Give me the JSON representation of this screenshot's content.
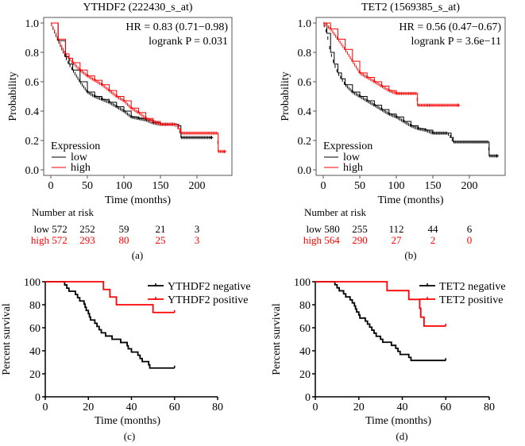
{
  "colors": {
    "low": "#000000",
    "high": "#ff0000",
    "frame": "#555555"
  },
  "chart_data": [
    {
      "id": "a",
      "type": "line",
      "subtype": "kaplan-meier",
      "title": "YTHDF2 (222430_s_at)",
      "xlabel": "Time (months)",
      "ylabel": "Probability",
      "xlim": [
        0,
        240
      ],
      "ylim": [
        0,
        1
      ],
      "xticks": [
        0,
        50,
        100,
        150,
        200
      ],
      "yticks": [
        "0.0",
        "0.2",
        "0.4",
        "0.6",
        "0.8",
        "1.0"
      ],
      "annotation": [
        "HR = 0.83 (0.71−0.98)",
        "logrank P = 0.031"
      ],
      "legend_title": "Expression",
      "legend_position": "bottom-left",
      "series": [
        {
          "name": "low",
          "color": "#000000",
          "x": [
            0,
            10,
            20,
            25,
            30,
            40,
            50,
            60,
            70,
            80,
            90,
            100,
            110,
            120,
            130,
            140,
            150,
            160,
            170,
            175,
            178,
            200,
            220
          ],
          "y": [
            1.0,
            0.88,
            0.77,
            0.72,
            0.68,
            0.6,
            0.53,
            0.5,
            0.48,
            0.46,
            0.43,
            0.4,
            0.36,
            0.35,
            0.34,
            0.32,
            0.31,
            0.31,
            0.31,
            0.3,
            0.22,
            0.22,
            0.22
          ]
        },
        {
          "name": "high",
          "color": "#ff0000",
          "x": [
            0,
            10,
            20,
            25,
            30,
            40,
            50,
            60,
            70,
            80,
            90,
            100,
            110,
            120,
            130,
            140,
            150,
            160,
            170,
            175,
            178,
            200,
            228,
            229,
            238
          ],
          "y": [
            1.0,
            0.89,
            0.79,
            0.76,
            0.73,
            0.68,
            0.64,
            0.61,
            0.58,
            0.54,
            0.5,
            0.47,
            0.42,
            0.39,
            0.35,
            0.33,
            0.31,
            0.31,
            0.31,
            0.28,
            0.25,
            0.25,
            0.25,
            0.125,
            0.125
          ]
        }
      ],
      "risk_table": {
        "title": "Number at risk",
        "rows": [
          {
            "label": "low",
            "values": [
              "572",
              "252",
              "59",
              "21",
              "3"
            ]
          },
          {
            "label": "high",
            "values": [
              "572",
              "293",
              "80",
              "25",
              "3"
            ]
          }
        ]
      },
      "panel_label": "(a)"
    },
    {
      "id": "b",
      "type": "line",
      "subtype": "kaplan-meier",
      "title": "TET2 (1569385_s_at)",
      "xlabel": "Time (months)",
      "ylabel": "Probability",
      "xlim": [
        0,
        240
      ],
      "ylim": [
        0,
        1
      ],
      "xticks": [
        0,
        50,
        100,
        150,
        200
      ],
      "yticks": [
        "0.0",
        "0.2",
        "0.4",
        "0.6",
        "0.8",
        "1.0"
      ],
      "annotation": [
        "HR = 0.56 (0.47−0.67)",
        "logrank P = 3.6e−11"
      ],
      "legend_title": "Expression",
      "legend_position": "bottom-left",
      "series": [
        {
          "name": "low",
          "color": "#000000",
          "x": [
            0,
            5,
            10,
            15,
            20,
            25,
            30,
            40,
            50,
            60,
            70,
            80,
            90,
            100,
            110,
            120,
            130,
            140,
            150,
            160,
            170,
            175,
            178,
            200,
            226,
            227,
            238
          ],
          "y": [
            1.0,
            0.93,
            0.8,
            0.72,
            0.66,
            0.62,
            0.58,
            0.53,
            0.5,
            0.47,
            0.44,
            0.41,
            0.38,
            0.36,
            0.33,
            0.3,
            0.28,
            0.27,
            0.25,
            0.25,
            0.25,
            0.22,
            0.19,
            0.19,
            0.19,
            0.095,
            0.095
          ]
        },
        {
          "name": "high",
          "color": "#ff0000",
          "x": [
            0,
            10,
            20,
            30,
            40,
            50,
            60,
            70,
            80,
            90,
            100,
            110,
            120,
            128,
            129,
            140,
            150,
            165,
            185
          ],
          "y": [
            1.0,
            0.96,
            0.89,
            0.82,
            0.74,
            0.66,
            0.63,
            0.6,
            0.57,
            0.54,
            0.52,
            0.52,
            0.52,
            0.52,
            0.44,
            0.44,
            0.44,
            0.44,
            0.44
          ]
        }
      ],
      "risk_table": {
        "title": "Number at risk",
        "rows": [
          {
            "label": "low",
            "values": [
              "580",
              "255",
              "112",
              "44",
              "6"
            ]
          },
          {
            "label": "high",
            "values": [
              "564",
              "290",
              "27",
              "2",
              "0"
            ]
          }
        ]
      },
      "panel_label": "(b)"
    },
    {
      "id": "c",
      "type": "line",
      "subtype": "kaplan-meier-step",
      "title": "",
      "xlabel": "Time (months)",
      "ylabel": "Percent survival",
      "xlim": [
        0,
        80
      ],
      "ylim": [
        0,
        100
      ],
      "xticks": [
        0,
        20,
        40,
        60,
        80
      ],
      "yticks": [
        "0",
        "20",
        "40",
        "60",
        "80",
        "100"
      ],
      "legend_position": "top-right",
      "series": [
        {
          "name": "YTHDF2 negative",
          "color": "#000000",
          "steps": [
            [
              0,
              100
            ],
            [
              9,
              97.2
            ],
            [
              10,
              94.4
            ],
            [
              11,
              91.7
            ],
            [
              14,
              88.9
            ],
            [
              15,
              86.1
            ],
            [
              16,
              83.3
            ],
            [
              18,
              80.6
            ],
            [
              18.5,
              77.8
            ],
            [
              19,
              75
            ],
            [
              20,
              72.2
            ],
            [
              20.5,
              69.4
            ],
            [
              21,
              66.7
            ],
            [
              23,
              63.9
            ],
            [
              24,
              61.1
            ],
            [
              25,
              58.3
            ],
            [
              26,
              55.6
            ],
            [
              28,
              52.8
            ],
            [
              31,
              50
            ],
            [
              35,
              47.2
            ],
            [
              38,
              44.4
            ],
            [
              38.5,
              41.7
            ],
            [
              40,
              38.9
            ],
            [
              43,
              36.1
            ],
            [
              44,
              33.3
            ],
            [
              45,
              30.6
            ],
            [
              48,
              27.8
            ],
            [
              48.5,
              25
            ]
          ],
          "end": 60
        },
        {
          "name": "YTHDF2 positive",
          "color": "#ff0000",
          "steps": [
            [
              0,
              100
            ],
            [
              27,
              93.3
            ],
            [
              30,
              86.7
            ],
            [
              33,
              80
            ],
            [
              50,
              73.3
            ]
          ],
          "end": 60
        }
      ],
      "panel_label": "(c)"
    },
    {
      "id": "d",
      "type": "line",
      "subtype": "kaplan-meier-step",
      "title": "",
      "xlabel": "Time (months)",
      "ylabel": "Percent survival",
      "xlim": [
        0,
        80
      ],
      "ylim": [
        0,
        100
      ],
      "xticks": [
        0,
        20,
        40,
        60,
        80
      ],
      "yticks": [
        "0",
        "20",
        "40",
        "60",
        "80",
        "100"
      ],
      "legend_position": "top-right",
      "series": [
        {
          "name": "TET2 negative",
          "color": "#000000",
          "steps": [
            [
              0,
              100
            ],
            [
              9,
              97.4
            ],
            [
              10,
              94.7
            ],
            [
              11,
              92.1
            ],
            [
              13,
              89.5
            ],
            [
              14,
              86.8
            ],
            [
              16,
              84.2
            ],
            [
              17,
              81.6
            ],
            [
              18,
              78.9
            ],
            [
              18.5,
              76.3
            ],
            [
              19,
              73.7
            ],
            [
              20,
              71.1
            ],
            [
              20.5,
              68.4
            ],
            [
              23,
              65.8
            ],
            [
              24,
              63.2
            ],
            [
              25,
              60.5
            ],
            [
              26,
              57.9
            ],
            [
              27,
              55.3
            ],
            [
              28,
              52.6
            ],
            [
              30,
              50
            ],
            [
              31,
              47.4
            ],
            [
              35,
              44.7
            ],
            [
              37,
              42.1
            ],
            [
              38,
              39.5
            ],
            [
              39,
              36.8
            ],
            [
              43,
              34.2
            ],
            [
              44,
              31.6
            ]
          ],
          "end": 60
        },
        {
          "name": "TET2 positive",
          "color": "#ff0000",
          "steps": [
            [
              0,
              100
            ],
            [
              33,
              92.3
            ],
            [
              43,
              84.6
            ],
            [
              48,
              76.9
            ],
            [
              48.5,
              69.2
            ],
            [
              50,
              61.5
            ]
          ],
          "end": 60
        }
      ],
      "panel_label": "(d)"
    }
  ]
}
